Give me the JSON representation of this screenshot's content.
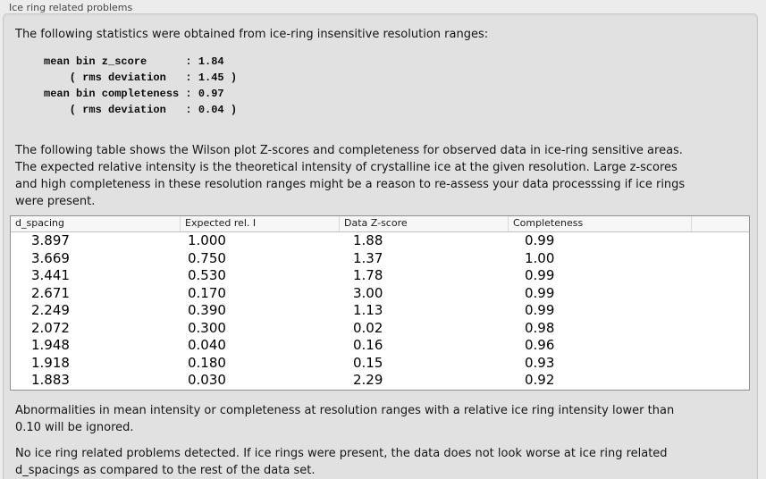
{
  "panel": {
    "title": "Ice ring related problems"
  },
  "intro": {
    "text": "The following statistics were obtained from ice-ring insensitive resolution ranges:"
  },
  "stats_block": {
    "lines": [
      "mean bin z_score      : 1.84",
      "    ( rms deviation   : 1.45 )",
      "mean bin completeness : 0.97",
      "    ( rms deviation   : 0.04 )"
    ]
  },
  "table_description": {
    "lines": [
      "The following table shows the Wilson plot Z-scores and completeness for observed data in ice-ring sensitive areas.",
      "The expected relative intensity is the theoretical intensity of crystalline ice at the given resolution. Large z-scores",
      "and high completeness in these resolution ranges might be a reason to re-assess your data processsing if ice rings",
      "were present."
    ]
  },
  "table": {
    "columns": [
      "d_spacing",
      "Expected rel. I",
      "Data Z-score",
      "Completeness"
    ],
    "rows": [
      [
        "3.897",
        "1.000",
        "1.88",
        "0.99"
      ],
      [
        "3.669",
        "0.750",
        "1.37",
        "1.00"
      ],
      [
        "3.441",
        "0.530",
        "1.78",
        "0.99"
      ],
      [
        "2.671",
        "0.170",
        "3.00",
        "0.99"
      ],
      [
        "2.249",
        "0.390",
        "1.13",
        "0.99"
      ],
      [
        "2.072",
        "0.300",
        "0.02",
        "0.98"
      ],
      [
        "1.948",
        "0.040",
        "0.16",
        "0.96"
      ],
      [
        "1.918",
        "0.180",
        "0.15",
        "0.93"
      ],
      [
        "1.883",
        "0.030",
        "2.29",
        "0.92"
      ]
    ]
  },
  "ignore_note": {
    "lines": [
      "Abnormalities in mean intensity or completeness at resolution ranges with a relative ice ring intensity lower than",
      "0.10 will be ignored."
    ]
  },
  "conclusion": {
    "lines": [
      "No ice ring related problems detected. If ice rings were present, the data does not look worse at ice ring related",
      "d_spacings as compared to the rest of the data set."
    ]
  },
  "colors": {
    "window_background": "#ececec",
    "groupbox_background": "#e1e1e1",
    "table_background": "#ffffff",
    "table_border": "#8f8f8f"
  }
}
